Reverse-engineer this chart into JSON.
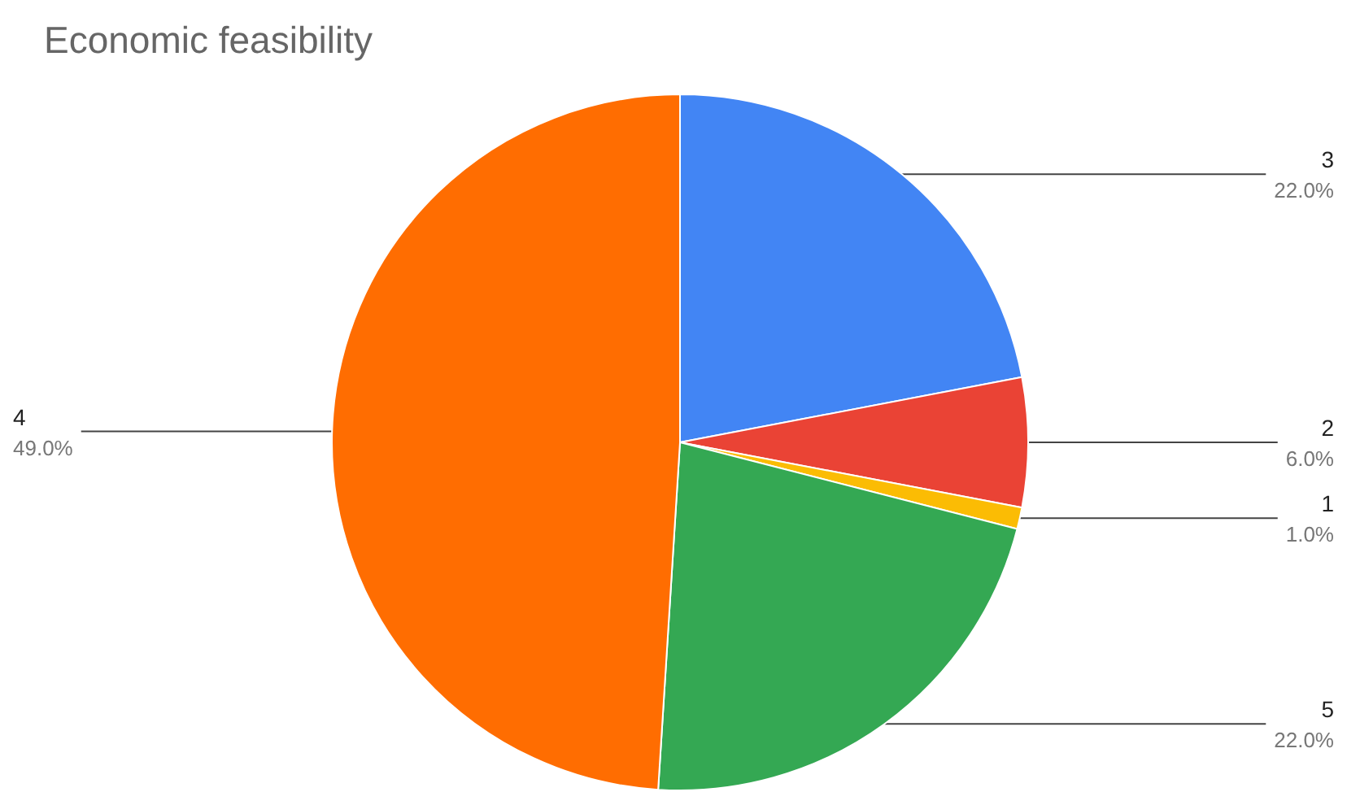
{
  "chart_data": {
    "type": "pie",
    "title": "Economic feasibility",
    "categories": [
      "3",
      "2",
      "1",
      "5",
      "4"
    ],
    "values": [
      22,
      6,
      1,
      22,
      49
    ],
    "value_labels": [
      "22.0%",
      "6.0%",
      "1.0%",
      "22.0%",
      "49.0%"
    ],
    "colors": [
      "#4285f4",
      "#ea4335",
      "#fbbc04",
      "#34a853",
      "#ff6d01"
    ],
    "legend": false
  }
}
